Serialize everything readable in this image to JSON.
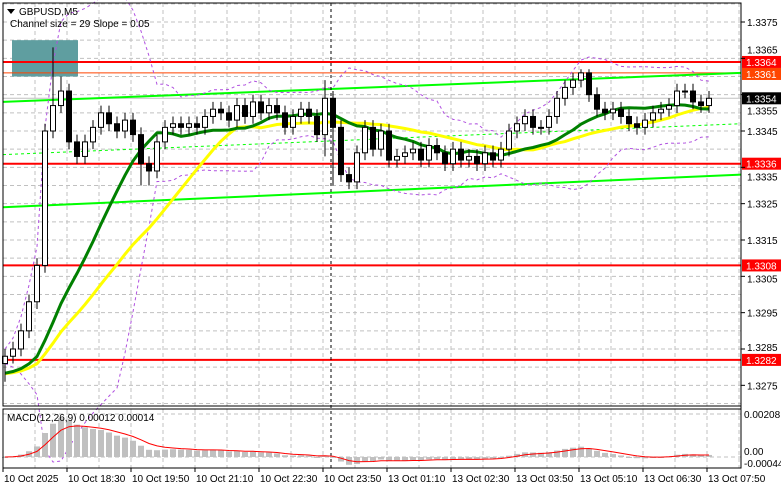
{
  "header": {
    "symbol_label": "GBPUSD,M5",
    "indicator_label": "Channel size = 29 Slope = 0.05",
    "macd_label": "MACD(12,26,9) 0.00012 0.00014"
  },
  "colors": {
    "background": "#ffffff",
    "grid": "#c0c0c0",
    "level_line": "#ff0000",
    "orange_line": "#ff4500",
    "channel": "#00ff00",
    "fast_ma": "#008000",
    "slow_ma": "#ffff00",
    "bands": "#b050e0",
    "zone": "#5f9ea0",
    "macd_hist": "#c0c0c0",
    "macd_signal": "#ff0000"
  },
  "chart_data": {
    "type": "candlestick",
    "symbol": "GBPUSD",
    "timeframe": "M5",
    "ylim": [
      1.327,
      1.3386
    ],
    "grid": true,
    "y_ticks": [
      "1.3375",
      "1.3365",
      "1.3355",
      "1.3345",
      "1.3335",
      "1.3325",
      "1.3315",
      "1.3305",
      "1.3295",
      "1.3285",
      "1.3275"
    ],
    "x_ticks": [
      "10 Oct 2025",
      "10 Oct 18:30",
      "10 Oct 19:50",
      "10 Oct 21:10",
      "10 Oct 22:30",
      "10 Oct 23:50",
      "13 Oct 01:10",
      "13 Oct 02:30",
      "13 Oct 03:50",
      "13 Oct 05:10",
      "13 Oct 06:30",
      "13 Oct 07:50"
    ],
    "first_open": 1.3281,
    "close": [
      1.3283,
      1.3285,
      1.329,
      1.3298,
      1.3308,
      1.3345,
      1.3352,
      1.3356,
      1.3342,
      1.3338,
      1.3342,
      1.3346,
      1.335,
      1.3347,
      1.3345,
      1.3348,
      1.3344,
      1.3336,
      1.3334,
      1.3342,
      1.3346,
      1.3347,
      1.3346,
      1.3347,
      1.3346,
      1.3349,
      1.3351,
      1.335,
      1.3348,
      1.3352,
      1.3349,
      1.3353,
      1.335,
      1.3352,
      1.335,
      1.3346,
      1.3349,
      1.3351,
      1.3349,
      1.3344,
      1.3354,
      1.3346,
      1.3333,
      1.3331,
      1.3339,
      1.3346,
      1.334,
      1.3345,
      1.3337,
      1.3338,
      1.3339,
      1.334,
      1.3337,
      1.3341,
      1.3339,
      1.3336,
      1.334,
      1.3337,
      1.3338,
      1.3336,
      1.3339,
      1.3337,
      1.334,
      1.3345,
      1.3347,
      1.3349,
      1.3346,
      1.3346,
      1.3349,
      1.3354,
      1.3357,
      1.3359,
      1.3361,
      1.3355,
      1.3351,
      1.335,
      1.3351,
      1.3349,
      1.3347,
      1.3346,
      1.3348,
      1.335,
      1.3351,
      1.3352,
      1.3356,
      1.3356,
      1.3353,
      1.3352,
      1.3354
    ],
    "high": [
      1.3285,
      1.3287,
      1.3292,
      1.33,
      1.331,
      1.3347,
      1.3368,
      1.336,
      1.3358,
      1.3344,
      1.3344,
      1.3348,
      1.3352,
      1.3352,
      1.3349,
      1.335,
      1.335,
      1.3346,
      1.3338,
      1.3344,
      1.3348,
      1.3349,
      1.3349,
      1.3349,
      1.3349,
      1.3351,
      1.3353,
      1.3353,
      1.3352,
      1.3354,
      1.3354,
      1.3355,
      1.3355,
      1.3354,
      1.3354,
      1.3352,
      1.3351,
      1.3353,
      1.3353,
      1.3351,
      1.3359,
      1.3356,
      1.3348,
      1.3335,
      1.3341,
      1.3348,
      1.3348,
      1.3347,
      1.3347,
      1.334,
      1.3341,
      1.3342,
      1.3342,
      1.3343,
      1.3343,
      1.3341,
      1.3342,
      1.3342,
      1.334,
      1.334,
      1.3341,
      1.3341,
      1.3342,
      1.3347,
      1.3349,
      1.3351,
      1.3351,
      1.3348,
      1.3351,
      1.3356,
      1.3359,
      1.3361,
      1.3362,
      1.3362,
      1.3357,
      1.3353,
      1.3353,
      1.3353,
      1.3351,
      1.3349,
      1.335,
      1.3352,
      1.3353,
      1.3354,
      1.3358,
      1.3358,
      1.3358,
      1.3355,
      1.3356
    ],
    "low": [
      1.3276,
      1.3281,
      1.3283,
      1.3288,
      1.3296,
      1.3306,
      1.3343,
      1.335,
      1.334,
      1.3336,
      1.3336,
      1.334,
      1.3344,
      1.3345,
      1.3343,
      1.3343,
      1.3342,
      1.333,
      1.333,
      1.3332,
      1.334,
      1.3344,
      1.3344,
      1.3344,
      1.3344,
      1.3344,
      1.3347,
      1.3348,
      1.3346,
      1.3346,
      1.3347,
      1.3347,
      1.3348,
      1.3348,
      1.3348,
      1.3344,
      1.3344,
      1.3347,
      1.3347,
      1.3342,
      1.3338,
      1.333,
      1.3331,
      1.3329,
      1.3329,
      1.3337,
      1.3338,
      1.3338,
      1.3335,
      1.3335,
      1.3336,
      1.3337,
      1.3335,
      1.3335,
      1.3337,
      1.3334,
      1.3334,
      1.3335,
      1.3335,
      1.3334,
      1.3334,
      1.3335,
      1.3335,
      1.3338,
      1.3343,
      1.3345,
      1.3344,
      1.3344,
      1.3344,
      1.3347,
      1.3352,
      1.3355,
      1.3357,
      1.3353,
      1.3349,
      1.3348,
      1.3348,
      1.3347,
      1.3345,
      1.3344,
      1.3344,
      1.3346,
      1.3348,
      1.3349,
      1.335,
      1.3354,
      1.3351,
      1.335,
      1.335
    ],
    "levels": [
      {
        "price": 1.3364,
        "label": "1.3364",
        "kind": "red"
      },
      {
        "price": 1.3361,
        "label": "1.3361",
        "kind": "orange"
      },
      {
        "price": 1.3354,
        "label": "1.3354",
        "kind": "current"
      },
      {
        "price": 1.3336,
        "label": "1.3336",
        "kind": "red"
      },
      {
        "price": 1.3308,
        "label": "1.3308",
        "kind": "red"
      },
      {
        "price": 1.3282,
        "label": "1.3282",
        "kind": "red"
      }
    ],
    "channel": {
      "upper": [
        1.3353,
        1.3361
      ],
      "lower": [
        1.3324,
        1.3333
      ],
      "middle": [
        1.33385,
        1.3347
      ]
    },
    "zone": {
      "top": 1.337,
      "bottom": 1.336
    },
    "fast_ma_period": 15,
    "slow_ma_period": 25,
    "macd": {
      "params": [
        12,
        26,
        9
      ],
      "ylim": [
        -0.00044,
        0.00208
      ],
      "y_ticks": [
        "0.00208",
        "0.00",
        "-0.00044"
      ]
    }
  }
}
